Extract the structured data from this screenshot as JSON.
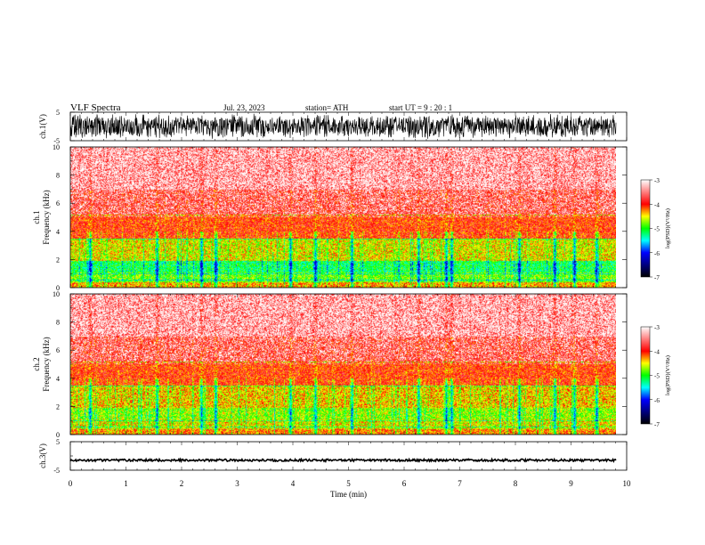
{
  "header": {
    "title": "VLF  Spectra",
    "date": "Jul.  23, 2023",
    "station": "station= ATH",
    "start_ut": "start  UT  =    9  : 20 : 1"
  },
  "chart_data": [
    {
      "id": "ch1-waveform",
      "type": "line",
      "ylabel": "ch.1(V)",
      "ylim": [
        -5,
        5
      ],
      "yticks": [
        "5",
        "-5"
      ],
      "xlim": [
        0,
        10
      ],
      "style": "dense-noise",
      "amplitude_range": [
        -4.5,
        4.5
      ],
      "color": "#000000"
    },
    {
      "id": "ch1-spectrogram",
      "type": "heatmap",
      "ylabel": "ch.1\nFrequency  (kHz)",
      "xlim": [
        0,
        9.8
      ],
      "ylim": [
        0,
        10
      ],
      "yticks": [
        "0",
        "2",
        "4",
        "6",
        "8",
        "10"
      ],
      "colorbar": {
        "label": "log(PSD)(V²/Hz)",
        "ticks": [
          "-3",
          "-4",
          "-5",
          "-6",
          "-7"
        ],
        "range": [
          -7,
          -3
        ]
      },
      "bands_khz": [
        {
          "from": 0.0,
          "to": 0.4,
          "level": -4.3
        },
        {
          "from": 0.4,
          "to": 1.1,
          "level": -4.8
        },
        {
          "from": 1.1,
          "to": 1.9,
          "level": -5.1
        },
        {
          "from": 1.9,
          "to": 3.5,
          "level": -4.5
        },
        {
          "from": 3.5,
          "to": 5.2,
          "level": -4.0
        },
        {
          "from": 5.2,
          "to": 7.0,
          "level": -3.8
        },
        {
          "from": 7.0,
          "to": 10.0,
          "level": -3.5
        }
      ],
      "spike_times_min": [
        0.35,
        1.55,
        2.35,
        2.6,
        3.95,
        4.4,
        5.05,
        6.25,
        6.75,
        6.85,
        8.05,
        8.7,
        9.05,
        9.45
      ]
    },
    {
      "id": "ch2-spectrogram",
      "type": "heatmap",
      "ylabel": "ch.2\nFrequency  (kHz)",
      "xlim": [
        0,
        9.8
      ],
      "ylim": [
        0,
        10
      ],
      "yticks": [
        "0",
        "2",
        "4",
        "6",
        "8",
        "10"
      ],
      "colorbar": {
        "label": "log(PSD)(V²/Hz)",
        "ticks": [
          "-3",
          "-4",
          "-5",
          "-6",
          "-7"
        ],
        "range": [
          -7,
          -3
        ]
      },
      "bands_khz": [
        {
          "from": 0.0,
          "to": 0.4,
          "level": -4.2
        },
        {
          "from": 0.4,
          "to": 1.1,
          "level": -4.5
        },
        {
          "from": 1.1,
          "to": 1.9,
          "level": -4.7
        },
        {
          "from": 1.9,
          "to": 3.5,
          "level": -4.4
        },
        {
          "from": 3.5,
          "to": 5.2,
          "level": -4.0
        },
        {
          "from": 5.2,
          "to": 7.0,
          "level": -3.8
        },
        {
          "from": 7.0,
          "to": 10.0,
          "level": -3.5
        }
      ],
      "spike_times_min": [
        0.35,
        1.55,
        2.35,
        2.6,
        3.95,
        4.4,
        5.05,
        6.25,
        6.75,
        6.85,
        8.05,
        8.7,
        9.05,
        9.45
      ]
    },
    {
      "id": "ch3-waveform",
      "type": "line",
      "ylabel": "ch.3(V)",
      "xlabel": "Time  (min)",
      "ylim": [
        -5,
        5
      ],
      "yticks": [
        "5",
        "-5"
      ],
      "xlim": [
        0,
        10
      ],
      "xticks": [
        "0",
        "1",
        "2",
        "3",
        "4",
        "5",
        "6",
        "7",
        "8",
        "9",
        "10"
      ],
      "style": "flat-line",
      "level": -1.5,
      "amplitude_range": [
        -1.9,
        -1.1
      ],
      "color": "#000000"
    }
  ],
  "colors": {
    "colormap": [
      "#000000",
      "#0000ff",
      "#00ffff",
      "#00ff00",
      "#ffff00",
      "#ff0000",
      "#ffffff"
    ],
    "colormap_levels": [
      -7,
      -6,
      -5.5,
      -5,
      -4.5,
      -4,
      -3
    ]
  }
}
